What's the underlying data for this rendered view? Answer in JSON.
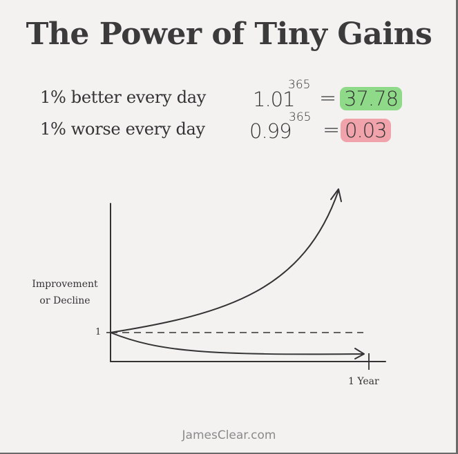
{
  "title": "The Power of Tiny Gains",
  "statements": [
    {
      "label": "1% better every day",
      "base": "1.01",
      "exponent": "365",
      "equals": "=",
      "result": "37.78",
      "highlight_color": "#8fda88"
    },
    {
      "label": "1% worse every day",
      "base": "0.99",
      "exponent": "365",
      "equals": "=",
      "result": "0.03",
      "highlight_color": "#f1a3ab"
    }
  ],
  "chart_data": {
    "type": "line",
    "ylabel": "Improvement or Decline",
    "ylabel_lines": [
      "Improvement",
      "or Decline"
    ],
    "y_tick_labels": [
      "1"
    ],
    "x_tick_labels": [
      "1 Year"
    ],
    "baseline": 1,
    "series": [
      {
        "name": "",
        "x": [
          0,
          365
        ],
        "y": [
          1,
          37.78
        ],
        "style": "curve-up-arrow"
      },
      {
        "name": "",
        "x": [
          0,
          365
        ],
        "y": [
          1,
          0.03
        ],
        "style": "curve-down-arrow"
      },
      {
        "name": "",
        "x": [
          0,
          365
        ],
        "y": [
          1,
          1
        ],
        "style": "dashed"
      }
    ],
    "grid": false
  },
  "footer": "JamesClear.com"
}
